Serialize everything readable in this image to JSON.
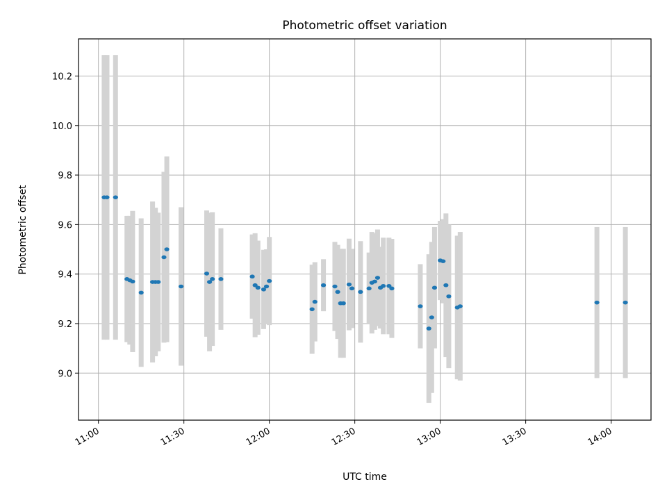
{
  "chart_data": {
    "type": "scatter",
    "title": "Photometric offset variation",
    "xlabel": "UTC time",
    "ylabel": "Photometric offset",
    "x_ticks": [
      "11:00",
      "11:30",
      "12:00",
      "12:30",
      "13:00",
      "13:30",
      "14:00"
    ],
    "y_ticks": [
      "9.0",
      "9.2",
      "9.4",
      "9.6",
      "9.8",
      "10.0",
      "10.2"
    ],
    "xlim": [
      "10:53",
      "14:14"
    ],
    "ylim": [
      8.81,
      10.35
    ],
    "grid": true,
    "errorbar_color": "#d3d3d3",
    "point_color": "#1f77b4",
    "series": [
      {
        "points": [
          {
            "t": "11:02",
            "y": 9.71,
            "err": 0.575
          },
          {
            "t": "11:03",
            "y": 9.71,
            "err": 0.575
          },
          {
            "t": "11:06",
            "y": 9.71,
            "err": 0.575
          },
          {
            "t": "11:10",
            "y": 9.38,
            "err": 0.255
          },
          {
            "t": "11:11",
            "y": 9.375,
            "err": 0.26
          },
          {
            "t": "11:12",
            "y": 9.37,
            "err": 0.285
          },
          {
            "t": "11:15",
            "y": 9.325,
            "err": 0.3
          },
          {
            "t": "11:19",
            "y": 9.368,
            "err": 0.325
          },
          {
            "t": "11:20",
            "y": 9.368,
            "err": 0.3
          },
          {
            "t": "11:21",
            "y": 9.368,
            "err": 0.28
          },
          {
            "t": "11:23",
            "y": 9.468,
            "err": 0.345
          },
          {
            "t": "11:24",
            "y": 9.5,
            "err": 0.375
          },
          {
            "t": "11:29",
            "y": 9.35,
            "err": 0.32
          },
          {
            "t": "11:38",
            "y": 9.402,
            "err": 0.255
          },
          {
            "t": "11:39",
            "y": 9.368,
            "err": 0.28
          },
          {
            "t": "11:40",
            "y": 9.38,
            "err": 0.27
          },
          {
            "t": "11:43",
            "y": 9.38,
            "err": 0.205
          },
          {
            "t": "11:54",
            "y": 9.39,
            "err": 0.17
          },
          {
            "t": "11:55",
            "y": 9.355,
            "err": 0.21
          },
          {
            "t": "11:56",
            "y": 9.345,
            "err": 0.19
          },
          {
            "t": "11:58",
            "y": 9.338,
            "err": 0.16
          },
          {
            "t": "11:59",
            "y": 9.35,
            "err": 0.15
          },
          {
            "t": "12:00",
            "y": 9.372,
            "err": 0.178
          },
          {
            "t": "12:15",
            "y": 9.258,
            "err": 0.18
          },
          {
            "t": "12:16",
            "y": 9.288,
            "err": 0.16
          },
          {
            "t": "12:19",
            "y": 9.355,
            "err": 0.105
          },
          {
            "t": "12:23",
            "y": 9.35,
            "err": 0.18
          },
          {
            "t": "12:24",
            "y": 9.328,
            "err": 0.19
          },
          {
            "t": "12:25",
            "y": 9.282,
            "err": 0.22
          },
          {
            "t": "12:26",
            "y": 9.282,
            "err": 0.22
          },
          {
            "t": "12:28",
            "y": 9.358,
            "err": 0.185
          },
          {
            "t": "12:29",
            "y": 9.342,
            "err": 0.16
          },
          {
            "t": "12:32",
            "y": 9.328,
            "err": 0.205
          },
          {
            "t": "12:35",
            "y": 9.342,
            "err": 0.145
          },
          {
            "t": "12:36",
            "y": 9.365,
            "err": 0.205
          },
          {
            "t": "12:37",
            "y": 9.37,
            "err": 0.195
          },
          {
            "t": "12:38",
            "y": 9.385,
            "err": 0.195
          },
          {
            "t": "12:39",
            "y": 9.345,
            "err": 0.165
          },
          {
            "t": "12:40",
            "y": 9.352,
            "err": 0.195
          },
          {
            "t": "12:42",
            "y": 9.352,
            "err": 0.195
          },
          {
            "t": "12:43",
            "y": 9.342,
            "err": 0.2
          },
          {
            "t": "12:53",
            "y": 9.27,
            "err": 0.17
          },
          {
            "t": "12:56",
            "y": 9.18,
            "err": 0.3
          },
          {
            "t": "12:57",
            "y": 9.225,
            "err": 0.305
          },
          {
            "t": "12:58",
            "y": 9.345,
            "err": 0.245
          },
          {
            "t": "13:00",
            "y": 9.455,
            "err": 0.16
          },
          {
            "t": "13:01",
            "y": 9.452,
            "err": 0.17
          },
          {
            "t": "13:02",
            "y": 9.355,
            "err": 0.29
          },
          {
            "t": "13:03",
            "y": 9.31,
            "err": 0.29
          },
          {
            "t": "13:06",
            "y": 9.265,
            "err": 0.29
          },
          {
            "t": "13:07",
            "y": 9.27,
            "err": 0.3
          },
          {
            "t": "13:55",
            "y": 9.285,
            "err": 0.305
          },
          {
            "t": "14:05",
            "y": 9.285,
            "err": 0.305
          }
        ]
      }
    ]
  }
}
